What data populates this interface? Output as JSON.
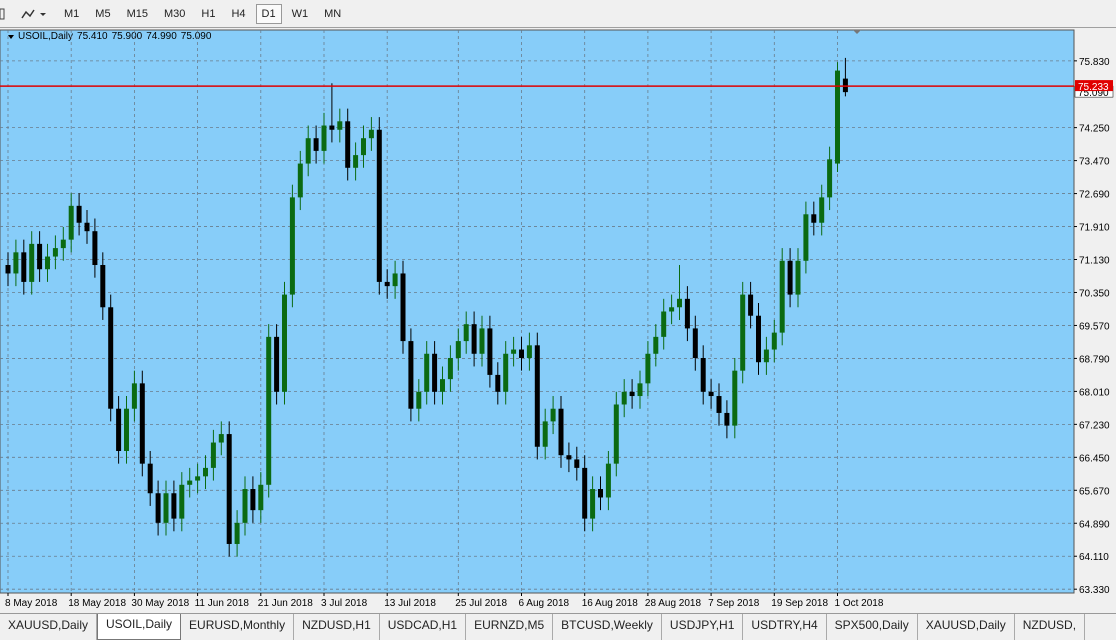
{
  "toolbar": {
    "timeframes": [
      "M1",
      "M5",
      "M15",
      "M30",
      "H1",
      "H4",
      "D1",
      "W1",
      "MN"
    ],
    "active": "D1"
  },
  "chart_data": {
    "type": "candlestick",
    "header": {
      "symbol": "USOIL,Daily",
      "open": "75.410",
      "high": "75.900",
      "low": "74.990",
      "close": "75.090"
    },
    "categories": [
      "8 May 2018",
      null,
      null,
      null,
      null,
      null,
      null,
      null,
      "18 May 2018",
      null,
      null,
      null,
      null,
      null,
      null,
      null,
      "30 May 2018",
      null,
      null,
      null,
      null,
      null,
      null,
      null,
      "11 Jun 2018",
      null,
      null,
      null,
      null,
      null,
      null,
      null,
      "21 Jun 2018",
      null,
      null,
      null,
      null,
      null,
      null,
      null,
      "3 Jul 2018",
      null,
      null,
      null,
      null,
      null,
      null,
      null,
      "13 Jul 2018",
      null,
      null,
      null,
      null,
      null,
      null,
      null,
      null,
      "25 Jul 2018",
      null,
      null,
      null,
      null,
      null,
      null,
      null,
      "6 Aug 2018",
      null,
      null,
      null,
      null,
      null,
      null,
      null,
      "16 Aug 2018",
      null,
      null,
      null,
      null,
      null,
      null,
      null,
      "28 Aug 2018",
      null,
      null,
      null,
      null,
      null,
      null,
      null,
      "7 Sep 2018",
      null,
      null,
      null,
      null,
      null,
      null,
      null,
      "19 Sep 2018",
      null,
      null,
      null,
      null,
      null,
      null,
      null,
      "1 Oct 2018",
      null
    ],
    "ohlc": [
      [
        71.0,
        71.3,
        70.5,
        70.8
      ],
      [
        70.8,
        71.6,
        70.5,
        71.3
      ],
      [
        71.3,
        71.6,
        70.3,
        70.6
      ],
      [
        70.6,
        71.8,
        70.3,
        71.5
      ],
      [
        71.5,
        71.8,
        70.6,
        70.9
      ],
      [
        70.9,
        71.5,
        70.6,
        71.2
      ],
      [
        71.2,
        71.7,
        70.9,
        71.4
      ],
      [
        71.4,
        71.9,
        71.1,
        71.6
      ],
      [
        71.6,
        72.7,
        71.3,
        72.4
      ],
      [
        72.4,
        72.7,
        71.7,
        72.0
      ],
      [
        72.0,
        72.3,
        71.5,
        71.8
      ],
      [
        71.8,
        72.1,
        70.7,
        71.0
      ],
      [
        71.0,
        71.3,
        69.7,
        70.0
      ],
      [
        70.0,
        70.3,
        67.3,
        67.6
      ],
      [
        67.6,
        67.9,
        66.3,
        66.6
      ],
      [
        66.6,
        67.9,
        66.3,
        67.6
      ],
      [
        67.6,
        68.5,
        67.3,
        68.2
      ],
      [
        68.2,
        68.5,
        66.0,
        66.3
      ],
      [
        66.3,
        66.6,
        65.3,
        65.6
      ],
      [
        65.6,
        65.9,
        64.6,
        64.9
      ],
      [
        64.9,
        65.9,
        64.6,
        65.6
      ],
      [
        65.6,
        65.9,
        64.7,
        65.0
      ],
      [
        65.0,
        66.1,
        64.7,
        65.8
      ],
      [
        65.8,
        66.2,
        65.5,
        65.9
      ],
      [
        65.9,
        66.3,
        65.6,
        66.0
      ],
      [
        66.0,
        66.5,
        65.7,
        66.2
      ],
      [
        66.2,
        67.1,
        65.9,
        66.8
      ],
      [
        66.8,
        67.3,
        66.5,
        67.0
      ],
      [
        67.0,
        67.3,
        64.1,
        64.4
      ],
      [
        64.4,
        65.2,
        64.1,
        64.9
      ],
      [
        64.9,
        66.0,
        64.6,
        65.7
      ],
      [
        65.7,
        66.0,
        64.9,
        65.2
      ],
      [
        65.2,
        66.1,
        64.9,
        65.8
      ],
      [
        65.8,
        69.6,
        65.5,
        69.3
      ],
      [
        69.3,
        69.6,
        67.7,
        68.0
      ],
      [
        68.0,
        70.6,
        67.7,
        70.3
      ],
      [
        70.3,
        72.9,
        70.0,
        72.6
      ],
      [
        72.6,
        73.7,
        72.3,
        73.4
      ],
      [
        73.4,
        74.3,
        73.1,
        74.0
      ],
      [
        74.0,
        74.3,
        73.4,
        73.7
      ],
      [
        73.7,
        74.6,
        73.4,
        74.3
      ],
      [
        74.3,
        75.3,
        73.9,
        74.2
      ],
      [
        74.2,
        74.7,
        73.9,
        74.4
      ],
      [
        74.4,
        74.7,
        73.0,
        73.3
      ],
      [
        73.3,
        73.9,
        73.0,
        73.6
      ],
      [
        73.6,
        74.3,
        73.3,
        74.0
      ],
      [
        74.0,
        74.5,
        73.7,
        74.2
      ],
      [
        74.2,
        74.5,
        70.3,
        70.6
      ],
      [
        70.6,
        70.9,
        70.2,
        70.5
      ],
      [
        70.5,
        71.1,
        70.2,
        70.8
      ],
      [
        70.8,
        71.1,
        68.9,
        69.2
      ],
      [
        69.2,
        69.5,
        67.3,
        67.6
      ],
      [
        67.6,
        68.3,
        67.3,
        68.0
      ],
      [
        68.0,
        69.2,
        67.7,
        68.9
      ],
      [
        68.9,
        69.2,
        67.7,
        68.0
      ],
      [
        68.0,
        68.6,
        67.7,
        68.3
      ],
      [
        68.3,
        69.1,
        68.0,
        68.8
      ],
      [
        68.8,
        69.5,
        68.5,
        69.2
      ],
      [
        69.2,
        69.9,
        68.9,
        69.6
      ],
      [
        69.6,
        69.9,
        68.6,
        68.9
      ],
      [
        68.9,
        69.8,
        68.6,
        69.5
      ],
      [
        69.5,
        69.8,
        68.1,
        68.4
      ],
      [
        68.4,
        68.7,
        67.7,
        68.0
      ],
      [
        68.0,
        69.2,
        67.7,
        68.9
      ],
      [
        68.9,
        69.3,
        68.6,
        69.0
      ],
      [
        69.0,
        69.3,
        68.5,
        68.8
      ],
      [
        68.8,
        69.4,
        68.5,
        69.1
      ],
      [
        69.1,
        69.4,
        66.4,
        66.7
      ],
      [
        66.7,
        67.6,
        66.4,
        67.3
      ],
      [
        67.3,
        67.9,
        67.0,
        67.6
      ],
      [
        67.6,
        67.9,
        66.2,
        66.5
      ],
      [
        66.5,
        66.8,
        66.1,
        66.4
      ],
      [
        66.4,
        66.7,
        65.9,
        66.2
      ],
      [
        66.2,
        66.5,
        64.7,
        65.0
      ],
      [
        65.0,
        66.0,
        64.7,
        65.7
      ],
      [
        65.7,
        66.0,
        65.2,
        65.5
      ],
      [
        65.5,
        66.6,
        65.2,
        66.3
      ],
      [
        66.3,
        68.0,
        66.0,
        67.7
      ],
      [
        67.7,
        68.3,
        67.4,
        68.0
      ],
      [
        68.0,
        68.3,
        67.6,
        67.9
      ],
      [
        67.9,
        68.5,
        67.6,
        68.2
      ],
      [
        68.2,
        69.2,
        67.9,
        68.9
      ],
      [
        68.9,
        69.6,
        68.6,
        69.3
      ],
      [
        69.3,
        70.2,
        69.0,
        69.9
      ],
      [
        69.9,
        70.3,
        69.6,
        70.0
      ],
      [
        70.0,
        71.0,
        69.7,
        70.2
      ],
      [
        70.2,
        70.5,
        69.2,
        69.5
      ],
      [
        69.5,
        69.8,
        68.5,
        68.8
      ],
      [
        68.8,
        69.1,
        67.7,
        68.0
      ],
      [
        68.0,
        68.3,
        67.6,
        67.9
      ],
      [
        67.9,
        68.2,
        67.2,
        67.5
      ],
      [
        67.5,
        67.8,
        66.9,
        67.2
      ],
      [
        67.2,
        68.8,
        66.9,
        68.5
      ],
      [
        68.5,
        70.6,
        68.2,
        70.3
      ],
      [
        70.3,
        70.6,
        69.5,
        69.8
      ],
      [
        69.8,
        70.1,
        68.4,
        68.7
      ],
      [
        68.7,
        69.3,
        68.4,
        69.0
      ],
      [
        69.0,
        69.7,
        68.7,
        69.4
      ],
      [
        69.4,
        71.4,
        69.1,
        71.1
      ],
      [
        71.1,
        71.4,
        70.0,
        70.3
      ],
      [
        70.3,
        71.4,
        70.0,
        71.1
      ],
      [
        71.1,
        72.5,
        70.8,
        72.2
      ],
      [
        72.2,
        72.5,
        71.7,
        72.0
      ],
      [
        72.0,
        72.9,
        71.7,
        72.6
      ],
      [
        72.6,
        73.8,
        72.3,
        73.5
      ],
      [
        73.4,
        75.8,
        73.2,
        75.6
      ],
      [
        75.41,
        75.9,
        74.99,
        75.09
      ]
    ],
    "bull_color": "#0b6a12",
    "bear_color": "#000000",
    "background": "#87cdf9",
    "grid": true,
    "ylim": [
      63.24,
      76.56
    ],
    "yticks": [
      {
        "value": 63.33,
        "label": "63.330"
      },
      {
        "value": 64.11,
        "label": "64.110"
      },
      {
        "value": 64.89,
        "label": "64.890"
      },
      {
        "value": 65.67,
        "label": "65.670"
      },
      {
        "value": 66.45,
        "label": "66.450"
      },
      {
        "value": 67.23,
        "label": "67.230"
      },
      {
        "value": 68.01,
        "label": "68.010"
      },
      {
        "value": 68.79,
        "label": "68.790"
      },
      {
        "value": 69.57,
        "label": "69.570"
      },
      {
        "value": 70.35,
        "label": "70.350"
      },
      {
        "value": 71.13,
        "label": "71.130"
      },
      {
        "value": 71.91,
        "label": "71.910"
      },
      {
        "value": 72.69,
        "label": "72.690"
      },
      {
        "value": 73.47,
        "label": "73.470"
      },
      {
        "value": 74.25,
        "label": "74.250"
      },
      {
        "value": 75.83,
        "label": "75.830"
      }
    ],
    "level_line": {
      "value": 75.233,
      "label": "75.233",
      "color": "#e00000"
    },
    "last_price": {
      "value": 75.09,
      "label": "75.090"
    }
  },
  "tabs": {
    "items": [
      "XAUUSD,Daily",
      "USOIL,Daily",
      "EURUSD,Monthly",
      "NZDUSD,H1",
      "USDCAD,H1",
      "EURNZD,M5",
      "BTCUSD,Weekly",
      "USDJPY,H1",
      "USDTRY,H4",
      "SPX500,Daily",
      "XAUUSD,Daily",
      "NZDUSD,"
    ],
    "active": "USOIL,Daily"
  }
}
